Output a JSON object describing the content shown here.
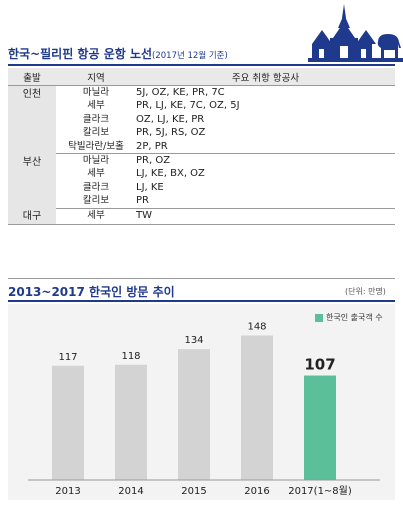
{
  "routes": {
    "title": "한국~필리핀 항공 운항 노선",
    "title_note": "(2017년 12월 기준)",
    "headers": {
      "origin": "출발",
      "region": "지역",
      "airlines": "주요 취항 항공사"
    },
    "groups": [
      {
        "origin": "인천",
        "rows": [
          {
            "region": "마닐라",
            "airlines": "5J, OZ, KE, PR, 7C"
          },
          {
            "region": "세부",
            "airlines": "PR, LJ, KE, 7C, OZ, 5J"
          },
          {
            "region": "클라크",
            "airlines": "OZ, LJ, KE, PR"
          },
          {
            "region": "칼리보",
            "airlines": "PR, 5J, RS, OZ"
          },
          {
            "region": "탁빌라란/보홀",
            "airlines": "2P, PR"
          }
        ]
      },
      {
        "origin": "부산",
        "rows": [
          {
            "region": "마닐라",
            "airlines": "PR, OZ"
          },
          {
            "region": "세부",
            "airlines": "LJ, KE, BX, OZ"
          },
          {
            "region": "클라크",
            "airlines": "LJ, KE"
          },
          {
            "region": "칼리보",
            "airlines": "PR"
          }
        ]
      },
      {
        "origin": "대구",
        "rows": [
          {
            "region": "세부",
            "airlines": "TW"
          }
        ]
      }
    ]
  },
  "chart_data": {
    "type": "bar",
    "title": "2013~2017 한국인 방문 추이",
    "unit": "(단위: 만명)",
    "categories": [
      "2013",
      "2014",
      "2015",
      "2016",
      "2017(1~8월)"
    ],
    "values": [
      117,
      118,
      134,
      148,
      107
    ],
    "legend": [
      "한국인 출국객 수"
    ],
    "highlight_index": 4,
    "ylim": [
      0,
      170
    ],
    "grid": false,
    "legend_position": "top-right",
    "colors": {
      "bar": "#d3d3d3",
      "highlight": "#5bbf9a"
    }
  }
}
